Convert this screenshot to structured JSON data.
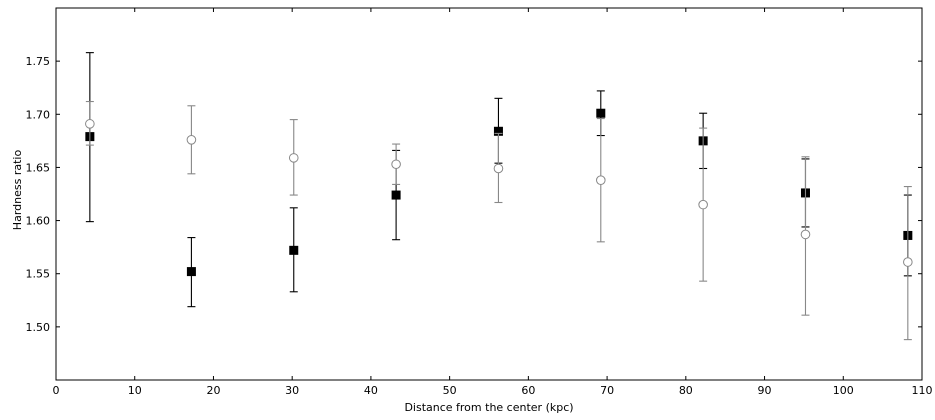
{
  "chart_data": {
    "type": "scatter",
    "xlabel": "Distance from the center (kpc)",
    "ylabel": "Hardness ratio",
    "xlim": [
      0,
      110
    ],
    "ylim": [
      1.45,
      1.8
    ],
    "xticks": [
      0,
      10,
      20,
      30,
      40,
      50,
      60,
      70,
      80,
      90,
      100,
      110
    ],
    "yticks": [
      1.5,
      1.55,
      1.6,
      1.65,
      1.7,
      1.75
    ],
    "ytick_labels": [
      "1.50",
      "1.55",
      "1.60",
      "1.65",
      "1.70",
      "1.75"
    ],
    "grid": false,
    "series": [
      {
        "marker": "filled-square",
        "color": "#000000",
        "points": [
          {
            "x": 4.3,
            "y": 1.679,
            "ylow": 1.599,
            "yhigh": 1.758
          },
          {
            "x": 17.2,
            "y": 1.552,
            "ylow": 1.519,
            "yhigh": 1.584
          },
          {
            "x": 30.2,
            "y": 1.572,
            "ylow": 1.533,
            "yhigh": 1.612
          },
          {
            "x": 43.2,
            "y": 1.624,
            "ylow": 1.582,
            "yhigh": 1.666
          },
          {
            "x": 56.2,
            "y": 1.684,
            "ylow": 1.654,
            "yhigh": 1.715
          },
          {
            "x": 69.2,
            "y": 1.701,
            "ylow": 1.68,
            "yhigh": 1.722
          },
          {
            "x": 82.2,
            "y": 1.675,
            "ylow": 1.649,
            "yhigh": 1.701
          },
          {
            "x": 95.2,
            "y": 1.626,
            "ylow": 1.594,
            "yhigh": 1.658
          },
          {
            "x": 108.2,
            "y": 1.586,
            "ylow": 1.548,
            "yhigh": 1.624
          }
        ]
      },
      {
        "marker": "open-circle",
        "color": "#888888",
        "points": [
          {
            "x": 4.3,
            "y": 1.691,
            "ylow": 1.671,
            "yhigh": 1.712
          },
          {
            "x": 17.2,
            "y": 1.676,
            "ylow": 1.644,
            "yhigh": 1.708
          },
          {
            "x": 30.2,
            "y": 1.659,
            "ylow": 1.624,
            "yhigh": 1.695
          },
          {
            "x": 43.2,
            "y": 1.653,
            "ylow": 1.634,
            "yhigh": 1.672
          },
          {
            "x": 56.2,
            "y": 1.649,
            "ylow": 1.617,
            "yhigh": 1.682
          },
          {
            "x": 69.2,
            "y": 1.638,
            "ylow": 1.58,
            "yhigh": 1.696
          },
          {
            "x": 82.2,
            "y": 1.615,
            "ylow": 1.543,
            "yhigh": 1.687
          },
          {
            "x": 95.2,
            "y": 1.587,
            "ylow": 1.511,
            "yhigh": 1.66
          },
          {
            "x": 108.2,
            "y": 1.561,
            "ylow": 1.488,
            "yhigh": 1.632
          }
        ]
      }
    ]
  }
}
